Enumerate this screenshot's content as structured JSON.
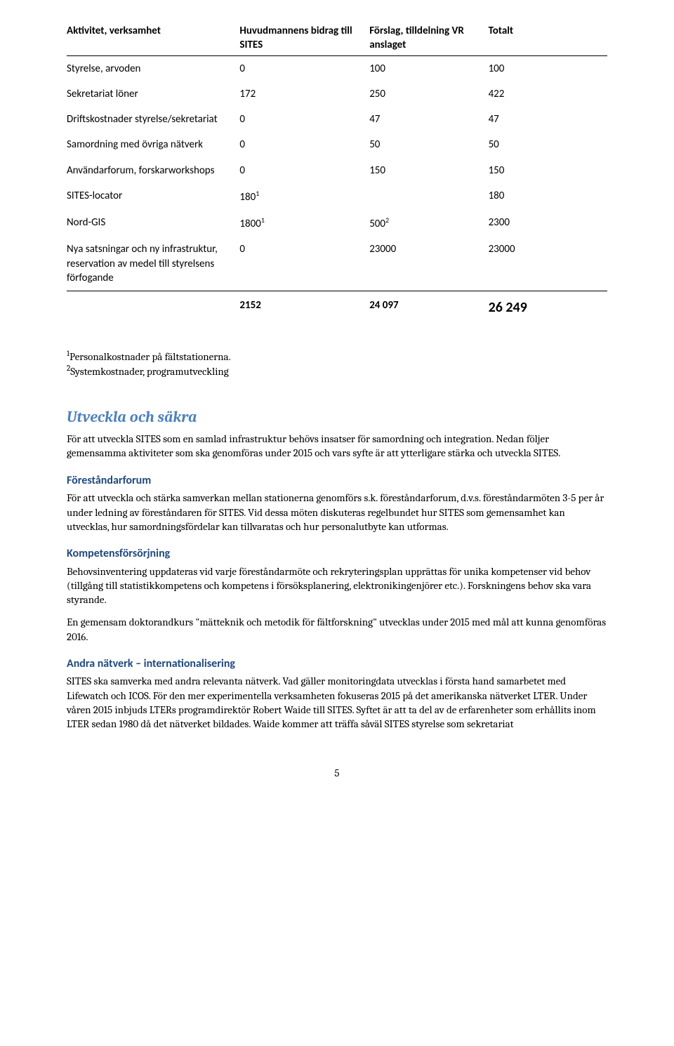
{
  "table": {
    "headers": [
      "Aktivitet, verksamhet",
      "Huvudmannens bidrag till SITES",
      "Förslag, tilldelning VR anslaget",
      "Totalt"
    ],
    "rows": [
      {
        "c0": "Styrelse, arvoden",
        "c1": "0",
        "c2": "100",
        "c3": "100"
      },
      {
        "c0": "Sekretariat löner",
        "c1": "172",
        "c2": "250",
        "c3": "422"
      },
      {
        "c0": "Driftskostnader styrelse/sekretariat",
        "c1": "0",
        "c2": "47",
        "c3": "47"
      },
      {
        "c0": "Samordning med övriga nätverk",
        "c1": "0",
        "c2": "50",
        "c3": "50"
      },
      {
        "c0": "Användarforum, forskarworkshops",
        "c1": "0",
        "c2": "150",
        "c3": "150"
      },
      {
        "c0": "SITES-locator",
        "c1": "180",
        "c1sup": "1",
        "c2": "",
        "c3": "180"
      },
      {
        "c0": "Nord-GIS",
        "c1": "1800",
        "c1sup": "1",
        "c2": "500",
        "c2sup": "2",
        "c3": "2300"
      },
      {
        "c0": "Nya satsningar och ny infrastruktur, reservation av medel till styrelsens förfogande",
        "c1": "0",
        "c2": "23000",
        "c3": "23000"
      }
    ],
    "totals": {
      "c0": "",
      "c1": "2152",
      "c2": "24 097",
      "c3": "26 249"
    }
  },
  "footnotes": {
    "fn1": "Personalkostnader på fältstationerna.",
    "fn2": "Systemkostnader, programutveckling"
  },
  "sections": {
    "utveckla": {
      "title": "Utveckla och säkra",
      "body": "För att utveckla SITES som en samlad infrastruktur behövs insatser för samordning och integration. Nedan följer gemensamma aktiviteter som ska genomföras under 2015 och vars syfte är att ytterligare stärka och utveckla SITES."
    },
    "forestandar": {
      "heading": "Föreståndarforum",
      "body": "För att utveckla och stärka samverkan mellan stationerna genomförs s.k. föreståndarforum, d.v.s. föreståndarmöten 3-5 per år under ledning av föreståndaren för SITES. Vid dessa möten diskuteras regelbundet hur SITES som gemensamhet kan utvecklas, hur samordningsfördelar kan tillvaratas och hur personalutbyte kan utformas."
    },
    "kompetens": {
      "heading": "Kompetensförsörjning",
      "body1": "Behovsinventering uppdateras vid varje föreståndarmöte och rekryteringsplan upprättas för unika kompetenser vid behov (tillgång till statistikkompetens och kompetens i försöksplanering, elektronikingenjörer etc.). Forskningens behov ska vara styrande.",
      "body2": "En gemensam doktorandkurs \"mätteknik och metodik för fältforskning\" utvecklas under 2015 med mål att kunna genomföras 2016."
    },
    "andra": {
      "heading": "Andra nätverk – internationalisering",
      "body": "SITES ska samverka med andra relevanta nätverk. Vad gäller monitoringdata utvecklas i första hand samarbetet med Lifewatch och ICOS. För den mer experimentella verksamheten fokuseras 2015 på det amerikanska nätverket LTER. Under våren 2015 inbjuds LTERs programdirektör Robert Waide till SITES.  Syftet är att ta del av de erfarenheter som erhållits inom LTER sedan 1980 då det nätverket bildades. Waide kommer att träffa såväl SITES styrelse som sekretariat"
    }
  },
  "pageNumber": "5"
}
